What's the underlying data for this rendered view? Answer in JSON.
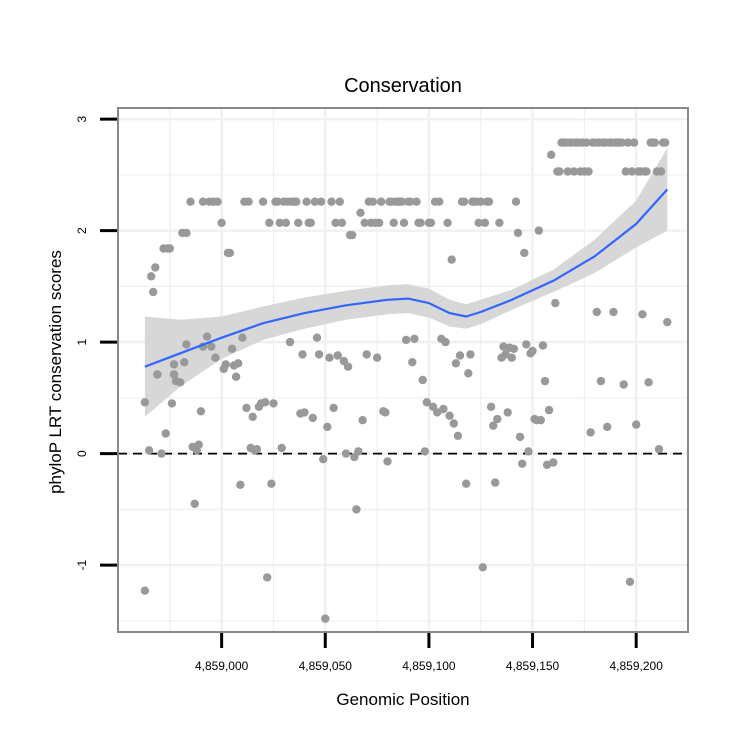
{
  "chart_data": {
    "type": "scatter",
    "title": "Conservation",
    "xlabel": "Genomic Position",
    "ylabel": "phyloP LRT conservation scores",
    "xlim": [
      4858950,
      4859225
    ],
    "ylim": [
      -1.6,
      3.1
    ],
    "x_ticks": [
      4859000,
      4859050,
      4859100,
      4859150,
      4859200
    ],
    "x_tick_labels": [
      "4,859,000",
      "4,859,050",
      "4,859,100",
      "4,859,150",
      "4,859,200"
    ],
    "y_ticks": [
      -1,
      0,
      1,
      2,
      3
    ],
    "y_tick_labels": [
      "-1",
      "0",
      "1",
      "2",
      "3"
    ],
    "grid": true,
    "reference_line": {
      "y": 0,
      "style": "dashed"
    },
    "colors": {
      "points": "#999999",
      "smooth": "#3366ff",
      "band": "#d5d5d5",
      "panel_border": "#888888",
      "grid": "#f0f0f0"
    },
    "points": [
      {
        "x": 4858963,
        "y": 0.46
      },
      {
        "x": 4858963,
        "y": -1.23
      },
      {
        "x": 4858965,
        "y": 0.03
      },
      {
        "x": 4858966,
        "y": 1.59
      },
      {
        "x": 4858967,
        "y": 1.45
      },
      {
        "x": 4858968,
        "y": 1.67
      },
      {
        "x": 4858969,
        "y": 0.71
      },
      {
        "x": 4858971,
        "y": 0.0
      },
      {
        "x": 4858972,
        "y": 1.84
      },
      {
        "x": 4858973,
        "y": 0.18
      },
      {
        "x": 4858974,
        "y": 1.84
      },
      {
        "x": 4858975,
        "y": 1.84
      },
      {
        "x": 4858976,
        "y": 0.45
      },
      {
        "x": 4858977,
        "y": 0.8
      },
      {
        "x": 4858977,
        "y": 0.71
      },
      {
        "x": 4858978,
        "y": 0.65
      },
      {
        "x": 4858980,
        "y": 0.64
      },
      {
        "x": 4858981,
        "y": 1.98
      },
      {
        "x": 4858982,
        "y": 0.82
      },
      {
        "x": 4858983,
        "y": 1.98
      },
      {
        "x": 4858983,
        "y": 0.98
      },
      {
        "x": 4858985,
        "y": 2.26
      },
      {
        "x": 4858986,
        "y": 0.06
      },
      {
        "x": 4858987,
        "y": -0.45
      },
      {
        "x": 4858988,
        "y": 0.03
      },
      {
        "x": 4858989,
        "y": 0.08
      },
      {
        "x": 4858990,
        "y": 0.38
      },
      {
        "x": 4858991,
        "y": 2.26
      },
      {
        "x": 4858991,
        "y": 0.96
      },
      {
        "x": 4858993,
        "y": 1.05
      },
      {
        "x": 4858994,
        "y": 2.26
      },
      {
        "x": 4858995,
        "y": 0.96
      },
      {
        "x": 4858996,
        "y": 2.26
      },
      {
        "x": 4858997,
        "y": 0.86
      },
      {
        "x": 4858998,
        "y": 2.26
      },
      {
        "x": 4859000,
        "y": 2.07
      },
      {
        "x": 4859001,
        "y": 0.76
      },
      {
        "x": 4859002,
        "y": 0.8
      },
      {
        "x": 4859003,
        "y": 1.8
      },
      {
        "x": 4859004,
        "y": 1.8
      },
      {
        "x": 4859005,
        "y": 0.94
      },
      {
        "x": 4859006,
        "y": 0.79
      },
      {
        "x": 4859007,
        "y": 0.69
      },
      {
        "x": 4859008,
        "y": 0.81
      },
      {
        "x": 4859009,
        "y": -0.28
      },
      {
        "x": 4859010,
        "y": 1.04
      },
      {
        "x": 4859011,
        "y": 2.26
      },
      {
        "x": 4859012,
        "y": 0.41
      },
      {
        "x": 4859013,
        "y": 2.26
      },
      {
        "x": 4859014,
        "y": 0.05
      },
      {
        "x": 4859015,
        "y": 0.33
      },
      {
        "x": 4859016,
        "y": 0.03
      },
      {
        "x": 4859017,
        "y": 0.04
      },
      {
        "x": 4859018,
        "y": 0.42
      },
      {
        "x": 4859019,
        "y": 0.45
      },
      {
        "x": 4859020,
        "y": 2.26
      },
      {
        "x": 4859021,
        "y": 0.46
      },
      {
        "x": 4859022,
        "y": -1.11
      },
      {
        "x": 4859023,
        "y": 2.07
      },
      {
        "x": 4859024,
        "y": -0.27
      },
      {
        "x": 4859025,
        "y": 0.45
      },
      {
        "x": 4859026,
        "y": 2.26
      },
      {
        "x": 4859027,
        "y": 2.26
      },
      {
        "x": 4859028,
        "y": 2.07
      },
      {
        "x": 4859029,
        "y": 0.05
      },
      {
        "x": 4859030,
        "y": 2.26
      },
      {
        "x": 4859031,
        "y": 2.07
      },
      {
        "x": 4859032,
        "y": 2.26
      },
      {
        "x": 4859033,
        "y": 1.0
      },
      {
        "x": 4859034,
        "y": 2.26
      },
      {
        "x": 4859035,
        "y": 2.26
      },
      {
        "x": 4859036,
        "y": 2.26
      },
      {
        "x": 4859037,
        "y": 2.07
      },
      {
        "x": 4859038,
        "y": 0.36
      },
      {
        "x": 4859039,
        "y": 0.89
      },
      {
        "x": 4859040,
        "y": 0.37
      },
      {
        "x": 4859041,
        "y": 2.26
      },
      {
        "x": 4859042,
        "y": 2.07
      },
      {
        "x": 4859043,
        "y": 2.07
      },
      {
        "x": 4859044,
        "y": 0.32
      },
      {
        "x": 4859045,
        "y": 2.26
      },
      {
        "x": 4859046,
        "y": 1.04
      },
      {
        "x": 4859047,
        "y": 0.89
      },
      {
        "x": 4859048,
        "y": 2.26
      },
      {
        "x": 4859049,
        "y": -0.05
      },
      {
        "x": 4859050,
        "y": -1.48
      },
      {
        "x": 4859051,
        "y": 0.24
      },
      {
        "x": 4859052,
        "y": 0.86
      },
      {
        "x": 4859053,
        "y": 2.26
      },
      {
        "x": 4859054,
        "y": 0.41
      },
      {
        "x": 4859055,
        "y": 2.07
      },
      {
        "x": 4859056,
        "y": 0.88
      },
      {
        "x": 4859057,
        "y": 2.26
      },
      {
        "x": 4859058,
        "y": 2.07
      },
      {
        "x": 4859059,
        "y": 0.83
      },
      {
        "x": 4859060,
        "y": 0.0
      },
      {
        "x": 4859061,
        "y": 0.78
      },
      {
        "x": 4859062,
        "y": 1.96
      },
      {
        "x": 4859063,
        "y": 1.96
      },
      {
        "x": 4859064,
        "y": -0.03
      },
      {
        "x": 4859065,
        "y": -0.5
      },
      {
        "x": 4859066,
        "y": 0.02
      },
      {
        "x": 4859067,
        "y": 2.16
      },
      {
        "x": 4859068,
        "y": 0.3
      },
      {
        "x": 4859069,
        "y": 2.07
      },
      {
        "x": 4859070,
        "y": 0.89
      },
      {
        "x": 4859071,
        "y": 2.26
      },
      {
        "x": 4859072,
        "y": 2.07
      },
      {
        "x": 4859073,
        "y": 2.26
      },
      {
        "x": 4859074,
        "y": 2.07
      },
      {
        "x": 4859075,
        "y": 0.86
      },
      {
        "x": 4859076,
        "y": 2.07
      },
      {
        "x": 4859077,
        "y": 2.26
      },
      {
        "x": 4859078,
        "y": 0.38
      },
      {
        "x": 4859079,
        "y": 0.37
      },
      {
        "x": 4859080,
        "y": -0.07
      },
      {
        "x": 4859081,
        "y": 2.26
      },
      {
        "x": 4859082,
        "y": 2.26
      },
      {
        "x": 4859083,
        "y": 2.07
      },
      {
        "x": 4859084,
        "y": 2.26
      },
      {
        "x": 4859085,
        "y": 2.26
      },
      {
        "x": 4859086,
        "y": 2.26
      },
      {
        "x": 4859087,
        "y": 2.26
      },
      {
        "x": 4859088,
        "y": 2.07
      },
      {
        "x": 4859089,
        "y": 1.02
      },
      {
        "x": 4859090,
        "y": 2.26
      },
      {
        "x": 4859091,
        "y": 2.26
      },
      {
        "x": 4859092,
        "y": 0.82
      },
      {
        "x": 4859093,
        "y": 1.03
      },
      {
        "x": 4859094,
        "y": 2.26
      },
      {
        "x": 4859095,
        "y": 2.07
      },
      {
        "x": 4859096,
        "y": 2.07
      },
      {
        "x": 4859097,
        "y": 0.66
      },
      {
        "x": 4859098,
        "y": 0.02
      },
      {
        "x": 4859099,
        "y": 0.46
      },
      {
        "x": 4859100,
        "y": 2.07
      },
      {
        "x": 4859101,
        "y": 2.07
      },
      {
        "x": 4859102,
        "y": 0.42
      },
      {
        "x": 4859103,
        "y": 2.26
      },
      {
        "x": 4859104,
        "y": 0.37
      },
      {
        "x": 4859105,
        "y": 2.26
      },
      {
        "x": 4859106,
        "y": 1.03
      },
      {
        "x": 4859107,
        "y": 0.4
      },
      {
        "x": 4859108,
        "y": 1.0
      },
      {
        "x": 4859109,
        "y": 2.07
      },
      {
        "x": 4859110,
        "y": 0.34
      },
      {
        "x": 4859111,
        "y": 1.74
      },
      {
        "x": 4859112,
        "y": 0.27
      },
      {
        "x": 4859113,
        "y": 0.81
      },
      {
        "x": 4859114,
        "y": 0.16
      },
      {
        "x": 4859115,
        "y": 0.88
      },
      {
        "x": 4859116,
        "y": 2.26
      },
      {
        "x": 4859117,
        "y": 2.26
      },
      {
        "x": 4859118,
        "y": -0.27
      },
      {
        "x": 4859119,
        "y": 0.72
      },
      {
        "x": 4859120,
        "y": 0.89
      },
      {
        "x": 4859121,
        "y": 2.26
      },
      {
        "x": 4859122,
        "y": 2.26
      },
      {
        "x": 4859123,
        "y": 2.26
      },
      {
        "x": 4859124,
        "y": 2.07
      },
      {
        "x": 4859125,
        "y": 2.26
      },
      {
        "x": 4859126,
        "y": -1.02
      },
      {
        "x": 4859127,
        "y": 2.07
      },
      {
        "x": 4859128,
        "y": 2.26
      },
      {
        "x": 4859129,
        "y": 2.26
      },
      {
        "x": 4859130,
        "y": 0.42
      },
      {
        "x": 4859131,
        "y": 0.25
      },
      {
        "x": 4859132,
        "y": -0.26
      },
      {
        "x": 4859133,
        "y": 0.31
      },
      {
        "x": 4859134,
        "y": 2.07
      },
      {
        "x": 4859135,
        "y": 0.86
      },
      {
        "x": 4859136,
        "y": 0.96
      },
      {
        "x": 4859137,
        "y": 0.89
      },
      {
        "x": 4859138,
        "y": 0.37
      },
      {
        "x": 4859139,
        "y": 0.95
      },
      {
        "x": 4859140,
        "y": 0.86
      },
      {
        "x": 4859141,
        "y": 0.94
      },
      {
        "x": 4859142,
        "y": 2.26
      },
      {
        "x": 4859143,
        "y": 1.98
      },
      {
        "x": 4859144,
        "y": 0.15
      },
      {
        "x": 4859145,
        "y": -0.09
      },
      {
        "x": 4859146,
        "y": 1.8
      },
      {
        "x": 4859147,
        "y": 0.98
      },
      {
        "x": 4859148,
        "y": 0.02
      },
      {
        "x": 4859149,
        "y": 0.9
      },
      {
        "x": 4859150,
        "y": 0.92
      },
      {
        "x": 4859151,
        "y": 0.31
      },
      {
        "x": 4859152,
        "y": 0.3
      },
      {
        "x": 4859153,
        "y": 2.0
      },
      {
        "x": 4859154,
        "y": 0.3
      },
      {
        "x": 4859155,
        "y": 0.97
      },
      {
        "x": 4859156,
        "y": 0.65
      },
      {
        "x": 4859157,
        "y": -0.1
      },
      {
        "x": 4859158,
        "y": 0.39
      },
      {
        "x": 4859159,
        "y": 2.68
      },
      {
        "x": 4859160,
        "y": -0.08
      },
      {
        "x": 4859161,
        "y": 1.35
      },
      {
        "x": 4859162,
        "y": 2.53
      },
      {
        "x": 4859163,
        "y": 2.53
      },
      {
        "x": 4859164,
        "y": 2.79
      },
      {
        "x": 4859165,
        "y": 2.79
      },
      {
        "x": 4859166,
        "y": 2.79
      },
      {
        "x": 4859167,
        "y": 2.53
      },
      {
        "x": 4859168,
        "y": 2.79
      },
      {
        "x": 4859169,
        "y": 2.79
      },
      {
        "x": 4859170,
        "y": 2.53
      },
      {
        "x": 4859171,
        "y": 2.79
      },
      {
        "x": 4859172,
        "y": 2.79
      },
      {
        "x": 4859173,
        "y": 2.53
      },
      {
        "x": 4859174,
        "y": 2.79
      },
      {
        "x": 4859175,
        "y": 2.53
      },
      {
        "x": 4859176,
        "y": 2.79
      },
      {
        "x": 4859177,
        "y": 2.53
      },
      {
        "x": 4859178,
        "y": 0.19
      },
      {
        "x": 4859179,
        "y": 2.79
      },
      {
        "x": 4859180,
        "y": 2.79
      },
      {
        "x": 4859181,
        "y": 1.27
      },
      {
        "x": 4859182,
        "y": 2.79
      },
      {
        "x": 4859183,
        "y": 0.65
      },
      {
        "x": 4859184,
        "y": 2.79
      },
      {
        "x": 4859185,
        "y": 2.79
      },
      {
        "x": 4859186,
        "y": 0.24
      },
      {
        "x": 4859187,
        "y": 2.79
      },
      {
        "x": 4859188,
        "y": 2.79
      },
      {
        "x": 4859189,
        "y": 1.27
      },
      {
        "x": 4859190,
        "y": 2.79
      },
      {
        "x": 4859191,
        "y": 2.79
      },
      {
        "x": 4859192,
        "y": 2.79
      },
      {
        "x": 4859193,
        "y": 2.79
      },
      {
        "x": 4859194,
        "y": 0.62
      },
      {
        "x": 4859195,
        "y": 2.53
      },
      {
        "x": 4859196,
        "y": 2.79
      },
      {
        "x": 4859197,
        "y": -1.15
      },
      {
        "x": 4859198,
        "y": 2.53
      },
      {
        "x": 4859199,
        "y": 2.79
      },
      {
        "x": 4859200,
        "y": 0.26
      },
      {
        "x": 4859201,
        "y": 2.53
      },
      {
        "x": 4859202,
        "y": 2.53
      },
      {
        "x": 4859203,
        "y": 1.25
      },
      {
        "x": 4859204,
        "y": 2.53
      },
      {
        "x": 4859205,
        "y": 2.53
      },
      {
        "x": 4859206,
        "y": 0.64
      },
      {
        "x": 4859207,
        "y": 2.79
      },
      {
        "x": 4859208,
        "y": 2.79
      },
      {
        "x": 4859209,
        "y": 2.79
      },
      {
        "x": 4859210,
        "y": 2.53
      },
      {
        "x": 4859211,
        "y": 0.04
      },
      {
        "x": 4859212,
        "y": 2.53
      },
      {
        "x": 4859213,
        "y": 2.79
      },
      {
        "x": 4859214,
        "y": 2.79
      },
      {
        "x": 4859215,
        "y": 1.18
      }
    ],
    "smooth": {
      "x": [
        4858963,
        4858980,
        4859000,
        4859020,
        4859040,
        4859060,
        4859080,
        4859090,
        4859100,
        4859110,
        4859118,
        4859125,
        4859140,
        4859160,
        4859180,
        4859200,
        4859215
      ],
      "y": [
        0.78,
        0.9,
        1.04,
        1.17,
        1.26,
        1.33,
        1.38,
        1.39,
        1.35,
        1.26,
        1.23,
        1.27,
        1.38,
        1.55,
        1.77,
        2.06,
        2.37
      ],
      "lower": [
        0.33,
        0.6,
        0.85,
        1.02,
        1.12,
        1.2,
        1.25,
        1.26,
        1.22,
        1.14,
        1.12,
        1.16,
        1.29,
        1.45,
        1.62,
        1.85,
        2.0
      ],
      "upper": [
        1.23,
        1.2,
        1.23,
        1.32,
        1.4,
        1.46,
        1.51,
        1.52,
        1.48,
        1.38,
        1.34,
        1.38,
        1.47,
        1.65,
        1.92,
        2.27,
        2.74
      ]
    }
  }
}
